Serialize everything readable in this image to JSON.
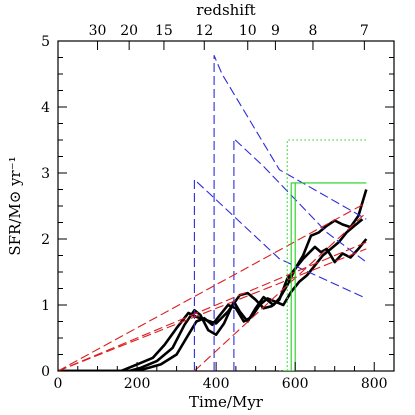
{
  "chart_data": {
    "type": "line",
    "title": "",
    "xlabel": "Time/Myr",
    "ylabel": "SFR/M⊙ yr⁻¹",
    "top_axis_label": "redshift",
    "xlim": [
      0,
      850
    ],
    "ylim": [
      0,
      5
    ],
    "x_ticks": [
      0,
      200,
      400,
      600,
      800
    ],
    "y_ticks": [
      0,
      1,
      2,
      3,
      4,
      5
    ],
    "redshift_ticks": [
      {
        "label": "30",
        "time": 100
      },
      {
        "label": "20",
        "time": 180
      },
      {
        "label": "15",
        "time": 268
      },
      {
        "label": "12",
        "time": 370
      },
      {
        "label": "10",
        "time": 480
      },
      {
        "label": "9",
        "time": 550
      },
      {
        "label": "8",
        "time": 645
      },
      {
        "label": "7",
        "time": 775
      }
    ],
    "series": [
      {
        "style": "solid",
        "color": "#000000",
        "points": [
          [
            0,
            0
          ],
          [
            160,
            0
          ],
          [
            200,
            0.1
          ],
          [
            240,
            0.2
          ],
          [
            270,
            0.4
          ],
          [
            300,
            0.65
          ],
          [
            330,
            0.88
          ],
          [
            350,
            0.82
          ],
          [
            370,
            0.78
          ],
          [
            400,
            0.72
          ],
          [
            430,
            0.9
          ],
          [
            460,
            1.15
          ],
          [
            480,
            1.18
          ],
          [
            500,
            1.08
          ],
          [
            520,
            0.95
          ],
          [
            540,
            0.98
          ],
          [
            560,
            1.08
          ],
          [
            580,
            1.4
          ],
          [
            600,
            1.55
          ],
          [
            620,
            1.75
          ],
          [
            640,
            2.05
          ],
          [
            660,
            2.1
          ],
          [
            680,
            2.2
          ],
          [
            700,
            2.28
          ],
          [
            720,
            2.22
          ],
          [
            740,
            2.18
          ],
          [
            760,
            2.35
          ],
          [
            780,
            2.75
          ]
        ]
      },
      {
        "style": "solid",
        "color": "#000000",
        "points": [
          [
            0,
            0
          ],
          [
            180,
            0
          ],
          [
            210,
            0.05
          ],
          [
            250,
            0.15
          ],
          [
            290,
            0.35
          ],
          [
            320,
            0.7
          ],
          [
            345,
            0.92
          ],
          [
            360,
            0.85
          ],
          [
            380,
            0.62
          ],
          [
            400,
            0.55
          ],
          [
            420,
            0.72
          ],
          [
            445,
            1.05
          ],
          [
            460,
            0.9
          ],
          [
            480,
            0.75
          ],
          [
            500,
            0.95
          ],
          [
            520,
            1.12
          ],
          [
            545,
            1.0
          ],
          [
            560,
            1.1
          ],
          [
            580,
            1.3
          ],
          [
            600,
            1.55
          ],
          [
            620,
            1.7
          ],
          [
            650,
            1.88
          ],
          [
            665,
            1.8
          ],
          [
            680,
            1.85
          ],
          [
            700,
            1.65
          ],
          [
            720,
            1.78
          ],
          [
            740,
            1.72
          ],
          [
            760,
            1.85
          ],
          [
            780,
            2.0
          ]
        ]
      },
      {
        "style": "solid",
        "color": "#000000",
        "points": [
          [
            0,
            0
          ],
          [
            200,
            0
          ],
          [
            230,
            0.05
          ],
          [
            260,
            0.1
          ],
          [
            300,
            0.25
          ],
          [
            330,
            0.55
          ],
          [
            350,
            0.75
          ],
          [
            370,
            0.8
          ],
          [
            390,
            0.7
          ],
          [
            410,
            0.85
          ],
          [
            430,
            1.0
          ],
          [
            450,
            0.95
          ],
          [
            470,
            0.75
          ],
          [
            490,
            0.82
          ],
          [
            510,
            1.0
          ],
          [
            530,
            1.1
          ],
          [
            550,
            1.05
          ],
          [
            570,
            1.0
          ],
          [
            590,
            1.2
          ],
          [
            610,
            1.35
          ],
          [
            630,
            1.45
          ],
          [
            650,
            1.6
          ],
          [
            670,
            1.75
          ],
          [
            690,
            1.85
          ],
          [
            710,
            1.95
          ],
          [
            730,
            2.1
          ],
          [
            750,
            2.2
          ],
          [
            770,
            2.3
          ]
        ]
      },
      {
        "style": "dashed",
        "color": "#2c2cdc",
        "points": [
          [
            345,
            0
          ],
          [
            345,
            2.9
          ],
          [
            390,
            2.65
          ],
          [
            560,
            1.7
          ],
          [
            780,
            1.1
          ]
        ]
      },
      {
        "style": "dashed",
        "color": "#2c2cdc",
        "points": [
          [
            395,
            0
          ],
          [
            395,
            4.78
          ],
          [
            415,
            4.5
          ],
          [
            560,
            3.05
          ],
          [
            780,
            2.3
          ]
        ]
      },
      {
        "style": "dashed",
        "color": "#2c2cdc",
        "points": [
          [
            445,
            0
          ],
          [
            445,
            3.52
          ],
          [
            520,
            3.1
          ],
          [
            680,
            2.1
          ],
          [
            780,
            1.65
          ]
        ]
      },
      {
        "style": "dashed",
        "color": "#dc1e1e",
        "points": [
          [
            0,
            0
          ],
          [
            780,
            2.55
          ]
        ]
      },
      {
        "style": "dashed",
        "color": "#dc1e1e",
        "points": [
          [
            0,
            0
          ],
          [
            780,
            1.95
          ]
        ]
      },
      {
        "style": "dashed",
        "color": "#dc1e1e",
        "points": [
          [
            0,
            0
          ],
          [
            780,
            1.85
          ]
        ]
      },
      {
        "style": "dashed",
        "color": "#dc1e1e",
        "points": [
          [
            345,
            0
          ],
          [
            780,
            2.4
          ]
        ]
      },
      {
        "style": "dotted",
        "color": "#1ed21e",
        "points": [
          [
            560,
            0
          ],
          [
            580,
            0
          ],
          [
            580,
            3.5
          ],
          [
            780,
            3.5
          ]
        ]
      },
      {
        "style": "solid",
        "color": "#1ed21e",
        "points": [
          [
            570,
            0
          ],
          [
            590,
            0
          ],
          [
            590,
            2.85
          ],
          [
            780,
            2.85
          ]
        ]
      },
      {
        "style": "solid",
        "color": "#1ed21e",
        "points": [
          [
            578,
            0
          ],
          [
            600,
            0
          ],
          [
            600,
            2.85
          ]
        ]
      }
    ]
  }
}
